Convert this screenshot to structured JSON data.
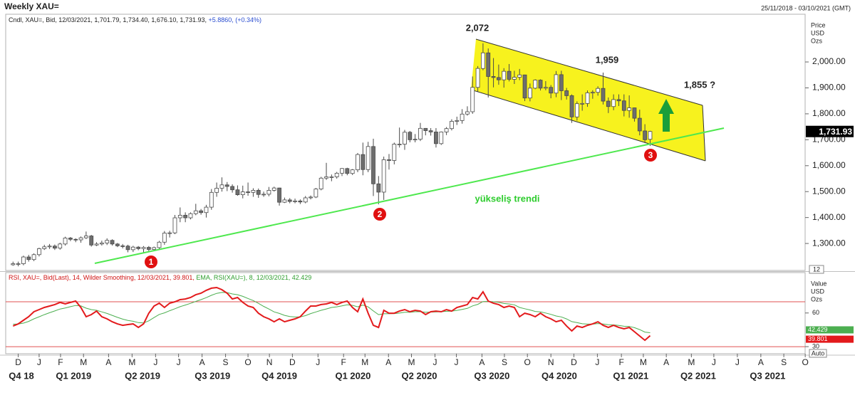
{
  "header": {
    "title": "Weekly XAU=",
    "range": "25/11/2018 - 03/10/2021 (GMT)"
  },
  "chart_data": [
    {
      "type": "candlestick",
      "legend_text": "Cndl, XAU=, Bid, 12/03/2021, 1,701.79, 1,734.40, 1,676.10, 1,731.93,",
      "legend_change": "+5.8860, (+0.34%)",
      "axis_title": [
        "Price",
        "USD",
        "Ozs"
      ],
      "last_label": "1,731.93",
      "scale_note": "12",
      "up_color": "#ffffff",
      "down_color": "#6e6e6e",
      "edge_color": "#4a4a4a",
      "ylim": [
        1196,
        2184
      ],
      "yticks": [
        {
          "value": 1300,
          "label": "1,300.00"
        },
        {
          "value": 1400,
          "label": "1,400.00"
        },
        {
          "value": 1500,
          "label": "1,500.00"
        },
        {
          "value": 1600,
          "label": "1,600.00"
        },
        {
          "value": 1700,
          "label": "1,700.00"
        },
        {
          "value": 1800,
          "label": "1,800.00"
        },
        {
          "value": 1900,
          "label": "1,900.00"
        },
        {
          "value": 2000,
          "label": "2,000.00"
        }
      ],
      "annotations": [
        "2,072",
        "1,959",
        "1,855 ?",
        "yükseliş trendi",
        "1",
        "2",
        "3"
      ],
      "open": [
        1218,
        1222,
        1222,
        1248,
        1238,
        1257,
        1280,
        1287,
        1290,
        1282,
        1298,
        1321,
        1316,
        1314,
        1322,
        1329,
        1294,
        1298,
        1302,
        1312,
        1298,
        1291,
        1290,
        1276,
        1286,
        1280,
        1285,
        1277,
        1284,
        1305,
        1340,
        1341,
        1399,
        1409,
        1399,
        1415,
        1426,
        1419,
        1440,
        1497,
        1513,
        1526,
        1520,
        1507,
        1488,
        1499,
        1497,
        1505,
        1489,
        1490,
        1505,
        1514,
        1459,
        1468,
        1462,
        1464,
        1460,
        1476,
        1479,
        1510,
        1552,
        1557,
        1557,
        1571,
        1589,
        1570,
        1584,
        1643,
        1585,
        1674,
        1530,
        1498,
        1623,
        1620,
        1683,
        1683,
        1729,
        1700,
        1702,
        1744,
        1735,
        1730,
        1685,
        1730,
        1743,
        1771,
        1774,
        1799,
        1808,
        1902,
        1975,
        2035,
        1944,
        1940,
        1931,
        1964,
        1933,
        1941,
        1950,
        1861,
        1899,
        1930,
        1899,
        1902,
        1880,
        1951,
        1889,
        1870,
        1788,
        1839,
        1840,
        1881,
        1883,
        1898,
        1849,
        1828,
        1855,
        1850,
        1813,
        1823,
        1783,
        1734,
        1701.79
      ],
      "high": [
        1230,
        1230,
        1253,
        1256,
        1262,
        1284,
        1295,
        1298,
        1296,
        1303,
        1326,
        1325,
        1320,
        1327,
        1346,
        1333,
        1305,
        1311,
        1320,
        1316,
        1302,
        1298,
        1295,
        1291,
        1290,
        1290,
        1290,
        1288,
        1310,
        1348,
        1349,
        1410,
        1439,
        1420,
        1420,
        1453,
        1433,
        1449,
        1510,
        1535,
        1555,
        1537,
        1528,
        1524,
        1523,
        1535,
        1513,
        1512,
        1500,
        1518,
        1519,
        1515,
        1477,
        1475,
        1473,
        1470,
        1483,
        1485,
        1514,
        1557,
        1611,
        1566,
        1576,
        1591,
        1592,
        1587,
        1649,
        1689,
        1692,
        1704,
        1560,
        1635,
        1645,
        1689,
        1747,
        1738,
        1734,
        1722,
        1765,
        1745,
        1745,
        1745,
        1732,
        1749,
        1779,
        1789,
        1818,
        1829,
        1944,
        1984,
        2072,
        2052,
        2015,
        1990,
        1976,
        1992,
        1966,
        1973,
        1951,
        1917,
        1933,
        1933,
        1926,
        1911,
        1965,
        1966,
        1900,
        1875,
        1848,
        1875,
        1890,
        1891,
        1906,
        1959,
        1863,
        1875,
        1875,
        1875,
        1871,
        1824,
        1816,
        1760,
        1734.4
      ],
      "low": [
        1214,
        1212,
        1216,
        1230,
        1232,
        1250,
        1275,
        1279,
        1275,
        1276,
        1292,
        1309,
        1305,
        1303,
        1317,
        1288,
        1290,
        1292,
        1294,
        1292,
        1286,
        1281,
        1266,
        1267,
        1274,
        1266,
        1270,
        1270,
        1278,
        1295,
        1323,
        1336,
        1382,
        1382,
        1393,
        1409,
        1411,
        1400,
        1430,
        1480,
        1500,
        1502,
        1496,
        1484,
        1474,
        1484,
        1480,
        1476,
        1480,
        1482,
        1500,
        1446,
        1456,
        1455,
        1455,
        1452,
        1455,
        1470,
        1475,
        1505,
        1545,
        1540,
        1550,
        1560,
        1563,
        1564,
        1575,
        1563,
        1575,
        1483,
        1451,
        1468,
        1585,
        1605,
        1670,
        1661,
        1690,
        1690,
        1695,
        1717,
        1716,
        1670,
        1680,
        1718,
        1736,
        1757,
        1762,
        1793,
        1800,
        1886,
        1968,
        1863,
        1902,
        1912,
        1901,
        1925,
        1915,
        1930,
        1849,
        1848,
        1895,
        1890,
        1891,
        1860,
        1864,
        1853,
        1855,
        1765,
        1774,
        1812,
        1827,
        1858,
        1870,
        1836,
        1803,
        1814,
        1830,
        1790,
        1785,
        1770,
        1717,
        1687,
        1676.1
      ],
      "close": [
        1222,
        1222,
        1248,
        1238,
        1257,
        1280,
        1287,
        1290,
        1282,
        1298,
        1321,
        1316,
        1314,
        1322,
        1329,
        1294,
        1298,
        1302,
        1312,
        1298,
        1291,
        1290,
        1276,
        1286,
        1280,
        1285,
        1277,
        1284,
        1305,
        1340,
        1341,
        1399,
        1409,
        1399,
        1415,
        1426,
        1419,
        1440,
        1497,
        1513,
        1526,
        1520,
        1507,
        1488,
        1499,
        1497,
        1505,
        1489,
        1490,
        1505,
        1514,
        1459,
        1468,
        1462,
        1464,
        1460,
        1476,
        1479,
        1510,
        1552,
        1557,
        1557,
        1571,
        1589,
        1570,
        1584,
        1643,
        1585,
        1674,
        1530,
        1498,
        1623,
        1620,
        1683,
        1683,
        1729,
        1700,
        1702,
        1744,
        1735,
        1730,
        1685,
        1730,
        1743,
        1771,
        1774,
        1799,
        1808,
        1902,
        1975,
        2035,
        1944,
        1940,
        1931,
        1964,
        1933,
        1941,
        1950,
        1861,
        1899,
        1930,
        1899,
        1902,
        1880,
        1951,
        1889,
        1870,
        1788,
        1839,
        1840,
        1881,
        1883,
        1898,
        1849,
        1828,
        1855,
        1850,
        1813,
        1823,
        1783,
        1734,
        1700,
        1731.93
      ]
    },
    {
      "type": "line",
      "legend_text": "RSI, XAU=, Bid(Last), 14, Wilder Smoothing, 12/03/2021, 39.801,",
      "legend_text2": "EMA, RSI(XAU=), 8, 12/03/2021, 42.429",
      "axis_title": [
        "Value",
        "USD",
        "Ozs"
      ],
      "auto_label": "Auto",
      "ylim": [
        23.7,
        96
      ],
      "yticks": [
        30,
        60
      ],
      "levels": [
        30,
        70
      ],
      "level_color": "#e05050",
      "xlim": [
        -1.4,
        152.5
      ],
      "xticks": [
        {
          "value": 1.0,
          "label": "D"
        },
        {
          "value": 5.0,
          "label": "J"
        },
        {
          "value": 9.1,
          "label": "F"
        },
        {
          "value": 13.5,
          "label": "M"
        },
        {
          "value": 18.3,
          "label": "A"
        },
        {
          "value": 22.8,
          "label": "M"
        },
        {
          "value": 27.3,
          "label": "J"
        },
        {
          "value": 31.7,
          "label": "J"
        },
        {
          "value": 36.2,
          "label": "A"
        },
        {
          "value": 40.7,
          "label": "S"
        },
        {
          "value": 45.0,
          "label": "O"
        },
        {
          "value": 49.1,
          "label": "N"
        },
        {
          "value": 53.5,
          "label": "D"
        },
        {
          "value": 58.4,
          "label": "J"
        },
        {
          "value": 63.3,
          "label": "F"
        },
        {
          "value": 67.4,
          "label": "M"
        },
        {
          "value": 71.9,
          "label": "A"
        },
        {
          "value": 76.3,
          "label": "M"
        },
        {
          "value": 80.8,
          "label": "J"
        },
        {
          "value": 84.9,
          "label": "J"
        },
        {
          "value": 89.8,
          "label": "A"
        },
        {
          "value": 94.1,
          "label": "S"
        },
        {
          "value": 98.5,
          "label": "O"
        },
        {
          "value": 103.0,
          "label": "N"
        },
        {
          "value": 107.4,
          "label": "D"
        },
        {
          "value": 111.9,
          "label": "J"
        },
        {
          "value": 116.5,
          "label": "F"
        },
        {
          "value": 120.7,
          "label": "M"
        },
        {
          "value": 125.1,
          "label": "A"
        },
        {
          "value": 129.9,
          "label": "M"
        },
        {
          "value": 134.2,
          "label": "J"
        },
        {
          "value": 138.7,
          "label": "J"
        },
        {
          "value": 143.2,
          "label": "A"
        },
        {
          "value": 147.6,
          "label": "S"
        },
        {
          "value": 151.7,
          "label": "O"
        }
      ],
      "quarter_ticks": [
        {
          "value": 1.6,
          "label": "Q4 18"
        },
        {
          "value": 11.6,
          "label": "Q1 2019"
        },
        {
          "value": 24.8,
          "label": "Q2 2019"
        },
        {
          "value": 38.2,
          "label": "Q3 2019"
        },
        {
          "value": 51.0,
          "label": "Q4 2019"
        },
        {
          "value": 65.1,
          "label": "Q1 2020"
        },
        {
          "value": 77.8,
          "label": "Q2 2020"
        },
        {
          "value": 91.7,
          "label": "Q3 2020"
        },
        {
          "value": 104.6,
          "label": "Q4 2020"
        },
        {
          "value": 118.3,
          "label": "Q1 2021"
        },
        {
          "value": 131.2,
          "label": "Q2 2021"
        },
        {
          "value": 144.5,
          "label": "Q3 2021"
        }
      ],
      "series": [
        {
          "color": "#e31a1c",
          "values": [
            48.4,
            50.3,
            53.5,
            56.7,
            61.1,
            63.0,
            64.9,
            66.2,
            67.5,
            69.4,
            68.1,
            69.4,
            70.6,
            64.9,
            56.7,
            58.6,
            61.7,
            56.7,
            54.8,
            52.2,
            50.3,
            49.0,
            49.7,
            50.3,
            47.1,
            50.3,
            59.8,
            66.2,
            68.7,
            64.9,
            68.7,
            70.0,
            71.9,
            72.5,
            73.8,
            76.3,
            77.6,
            80.2,
            82.1,
            82.7,
            80.8,
            77.6,
            72.5,
            73.8,
            69.4,
            66.2,
            64.9,
            59.8,
            56.7,
            54.8,
            52.2,
            54.8,
            52.2,
            53.5,
            54.8,
            56.7,
            61.7,
            66.2,
            66.2,
            67.5,
            68.1,
            69.4,
            67.5,
            69.4,
            70.6,
            64.9,
            61.1,
            72.5,
            59.8,
            49.0,
            47.1,
            62.4,
            59.8,
            59.8,
            61.7,
            63.0,
            61.1,
            62.4,
            61.7,
            58.6,
            61.1,
            61.7,
            61.1,
            63.0,
            61.7,
            64.9,
            66.2,
            67.5,
            73.8,
            72.5,
            78.9,
            70.6,
            68.7,
            67.5,
            64.9,
            66.2,
            64.9,
            56.7,
            59.8,
            58.6,
            56.7,
            59.8,
            56.7,
            54.8,
            52.2,
            53.5,
            48.4,
            44.0,
            48.4,
            47.1,
            49.0,
            50.3,
            52.2,
            49.0,
            47.1,
            49.0,
            47.1,
            45.9,
            47.1,
            43.3,
            39.5,
            35.7,
            39.801
          ]
        },
        {
          "color": "#4caf50",
          "values": [
            50,
            50.2,
            51,
            52.5,
            54.8,
            56.6,
            58.5,
            60.2,
            61.8,
            63.5,
            64.5,
            65.6,
            66.7,
            66.3,
            64.3,
            63,
            62.4,
            61,
            59.6,
            57.9,
            56.1,
            54.5,
            53.4,
            52.6,
            51.4,
            51.1,
            53,
            55.9,
            58.7,
            60.1,
            62,
            63.8,
            65.6,
            67.1,
            68.6,
            70.3,
            71.9,
            73.7,
            75.8,
            77.5,
            78.3,
            78.2,
            77,
            76.3,
            74.8,
            72.9,
            71.1,
            68.6,
            65.9,
            63.5,
            61,
            59.6,
            57.9,
            56.9,
            56.4,
            56.5,
            57.6,
            59.5,
            60.9,
            62.4,
            63.6,
            64.9,
            65.5,
            66.4,
            67.3,
            66.8,
            65.5,
            67,
            65.4,
            61.8,
            58.5,
            59.3,
            59.4,
            59.5,
            59.9,
            60.6,
            60.7,
            61.1,
            61.2,
            60.7,
            60.8,
            61,
            61.1,
            61.5,
            61.6,
            62.3,
            63.2,
            64.1,
            66.3,
            67.7,
            70.2,
            70.3,
            70,
            69.5,
            68.5,
            68,
            67.3,
            64.9,
            63.8,
            62.7,
            61.4,
            61,
            60,
            58.8,
            57.3,
            56.5,
            54.7,
            52.3,
            51.4,
            50.4,
            50.1,
            50.1,
            50.6,
            50.2,
            49.5,
            49.4,
            48.9,
            48.2,
            48,
            46.9,
            45.2,
            43,
            42.429
          ]
        }
      ]
    }
  ]
}
